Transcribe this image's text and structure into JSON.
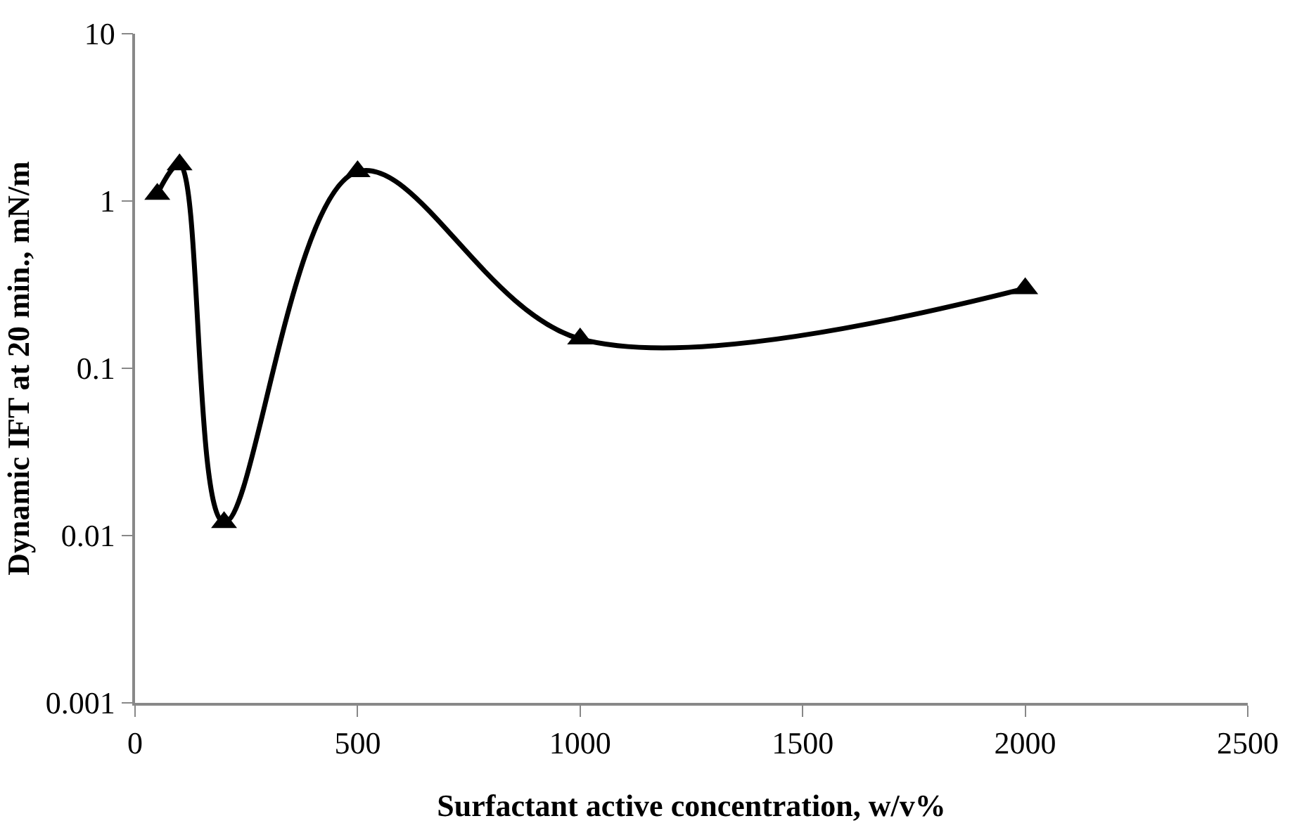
{
  "chart_data": {
    "type": "line",
    "xlabel": "Surfactant active concentration, w/v%",
    "ylabel": "Dynamic IFT at 20 min., mN/m",
    "x": [
      50,
      100,
      200,
      500,
      1000,
      2000
    ],
    "series": [
      {
        "color": "#000000",
        "values": [
          1.1,
          1.65,
          0.012,
          1.5,
          0.15,
          0.3
        ]
      }
    ],
    "xlim": [
      0,
      2500
    ],
    "xticks": [
      0,
      500,
      1000,
      1500,
      2000,
      2500
    ],
    "ylim": [
      0.001,
      10
    ],
    "yticks": [
      0.001,
      0.01,
      0.1,
      1,
      10
    ],
    "log": "y",
    "marker": "triangle",
    "line_style": "solid"
  }
}
